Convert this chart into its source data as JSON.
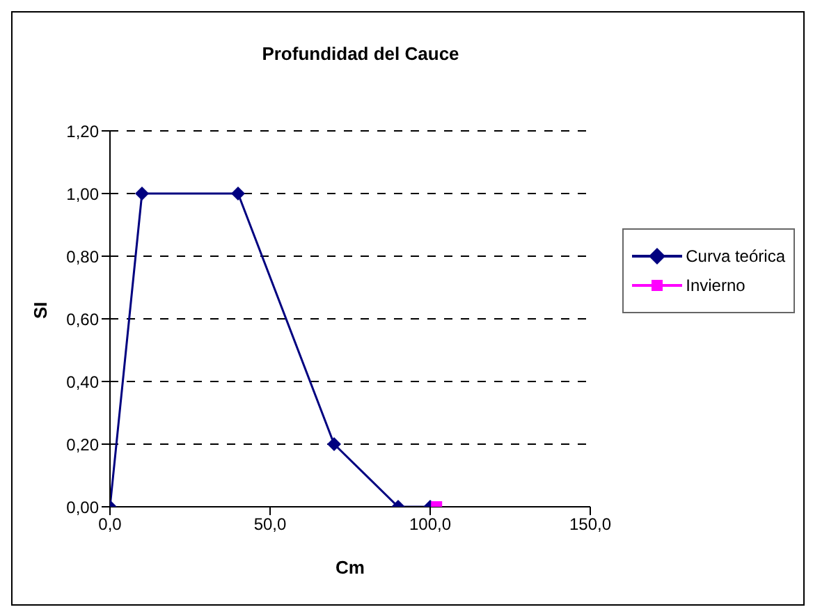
{
  "chart_data": {
    "type": "line",
    "title": "Profundidad del Cauce",
    "xlabel": "Cm",
    "ylabel": "SI",
    "xlim": [
      0,
      150
    ],
    "xticks": [
      {
        "value": 0,
        "label": "0,0"
      },
      {
        "value": 50,
        "label": "50,0"
      },
      {
        "value": 100,
        "label": "100,0"
      },
      {
        "value": 150,
        "label": "150,0"
      }
    ],
    "ylim": [
      0,
      1.2
    ],
    "yticks": [
      {
        "value": 0,
        "label": "0,00"
      },
      {
        "value": 0.2,
        "label": "0,20"
      },
      {
        "value": 0.4,
        "label": "0,40"
      },
      {
        "value": 0.6,
        "label": "0,60"
      },
      {
        "value": 0.8,
        "label": "0,80"
      },
      {
        "value": 1,
        "label": "1,00"
      },
      {
        "value": 1.2,
        "label": "1,20"
      }
    ],
    "grid": "y",
    "legend": "right",
    "series": [
      {
        "name": "Curva teórica",
        "color": "#000080",
        "marker": "diamond",
        "x": [
          0,
          10,
          40,
          70,
          90,
          100
        ],
        "values": [
          0,
          1,
          1,
          0.2,
          0,
          0
        ]
      },
      {
        "name": "Invierno",
        "color": "#ff00ff",
        "marker": "square",
        "x": [
          102
        ],
        "values": [
          0
        ]
      }
    ]
  }
}
